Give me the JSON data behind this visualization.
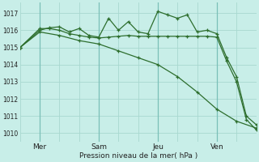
{
  "bg_color": "#c8eee8",
  "grid_color": "#a8d8d0",
  "line_color": "#2d6e2d",
  "title": "Pression niveau de la mer( hPa )",
  "ylabel_ticks": [
    1010,
    1011,
    1012,
    1013,
    1014,
    1015,
    1016,
    1017
  ],
  "ylim": [
    1009.5,
    1017.6
  ],
  "xlim": [
    0,
    96
  ],
  "day_ticks": [
    {
      "x": 8,
      "label": "Mer"
    },
    {
      "x": 32,
      "label": "Sam"
    },
    {
      "x": 56,
      "label": "Jeu"
    },
    {
      "x": 80,
      "label": "Ven"
    }
  ],
  "vlines": [
    8,
    32,
    56,
    80
  ],
  "series": [
    {
      "x": [
        0,
        8,
        12,
        16,
        20,
        24,
        28,
        32,
        36,
        40,
        44,
        48,
        52,
        56,
        60,
        64,
        68,
        72,
        76,
        80,
        84,
        88,
        92,
        96
      ],
      "y": [
        1015.0,
        1016.0,
        1016.15,
        1016.2,
        1015.9,
        1016.1,
        1015.7,
        1015.6,
        1016.7,
        1016.0,
        1016.5,
        1015.9,
        1015.8,
        1017.1,
        1016.9,
        1016.7,
        1016.9,
        1015.9,
        1016.0,
        1015.8,
        1014.4,
        1013.3,
        1011.0,
        1010.5
      ]
    },
    {
      "x": [
        0,
        8,
        12,
        16,
        20,
        24,
        28,
        32,
        36,
        40,
        44,
        48,
        52,
        56,
        60,
        64,
        68,
        72,
        76,
        80,
        84,
        88,
        92,
        96
      ],
      "y": [
        1015.0,
        1016.1,
        1016.1,
        1016.0,
        1015.8,
        1015.7,
        1015.6,
        1015.55,
        1015.6,
        1015.65,
        1015.7,
        1015.65,
        1015.65,
        1015.65,
        1015.65,
        1015.65,
        1015.65,
        1015.65,
        1015.65,
        1015.6,
        1014.2,
        1013.0,
        1010.8,
        1010.2
      ]
    },
    {
      "x": [
        0,
        8,
        16,
        24,
        32,
        40,
        48,
        56,
        64,
        72,
        80,
        88,
        96
      ],
      "y": [
        1015.0,
        1015.9,
        1015.7,
        1015.4,
        1015.2,
        1014.8,
        1014.4,
        1014.0,
        1013.3,
        1012.4,
        1011.4,
        1010.7,
        1010.3
      ]
    }
  ]
}
